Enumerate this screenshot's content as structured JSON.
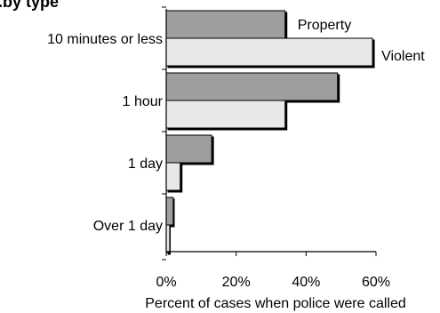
{
  "chart_data": {
    "type": "bar",
    "orientation": "horizontal",
    "title": "...by type",
    "categories": [
      "10 minutes or less",
      "1 hour",
      "1 day",
      "Over 1 day"
    ],
    "series": [
      {
        "name": "Property",
        "values": [
          34,
          49,
          13,
          2
        ],
        "color": "#9e9e9e"
      },
      {
        "name": "Violent",
        "values": [
          59,
          34,
          4,
          1
        ],
        "color": "#e8e8e8"
      }
    ],
    "xlim": [
      0,
      60
    ],
    "x_ticks": [
      {
        "value": 0,
        "label": "0%"
      },
      {
        "value": 20,
        "label": "20%"
      },
      {
        "value": 40,
        "label": "40%"
      },
      {
        "value": 60,
        "label": "60%"
      }
    ],
    "xlabel": "Percent of cases when police were called",
    "ylabel": "",
    "grid": false,
    "legend": "inline-labels"
  }
}
